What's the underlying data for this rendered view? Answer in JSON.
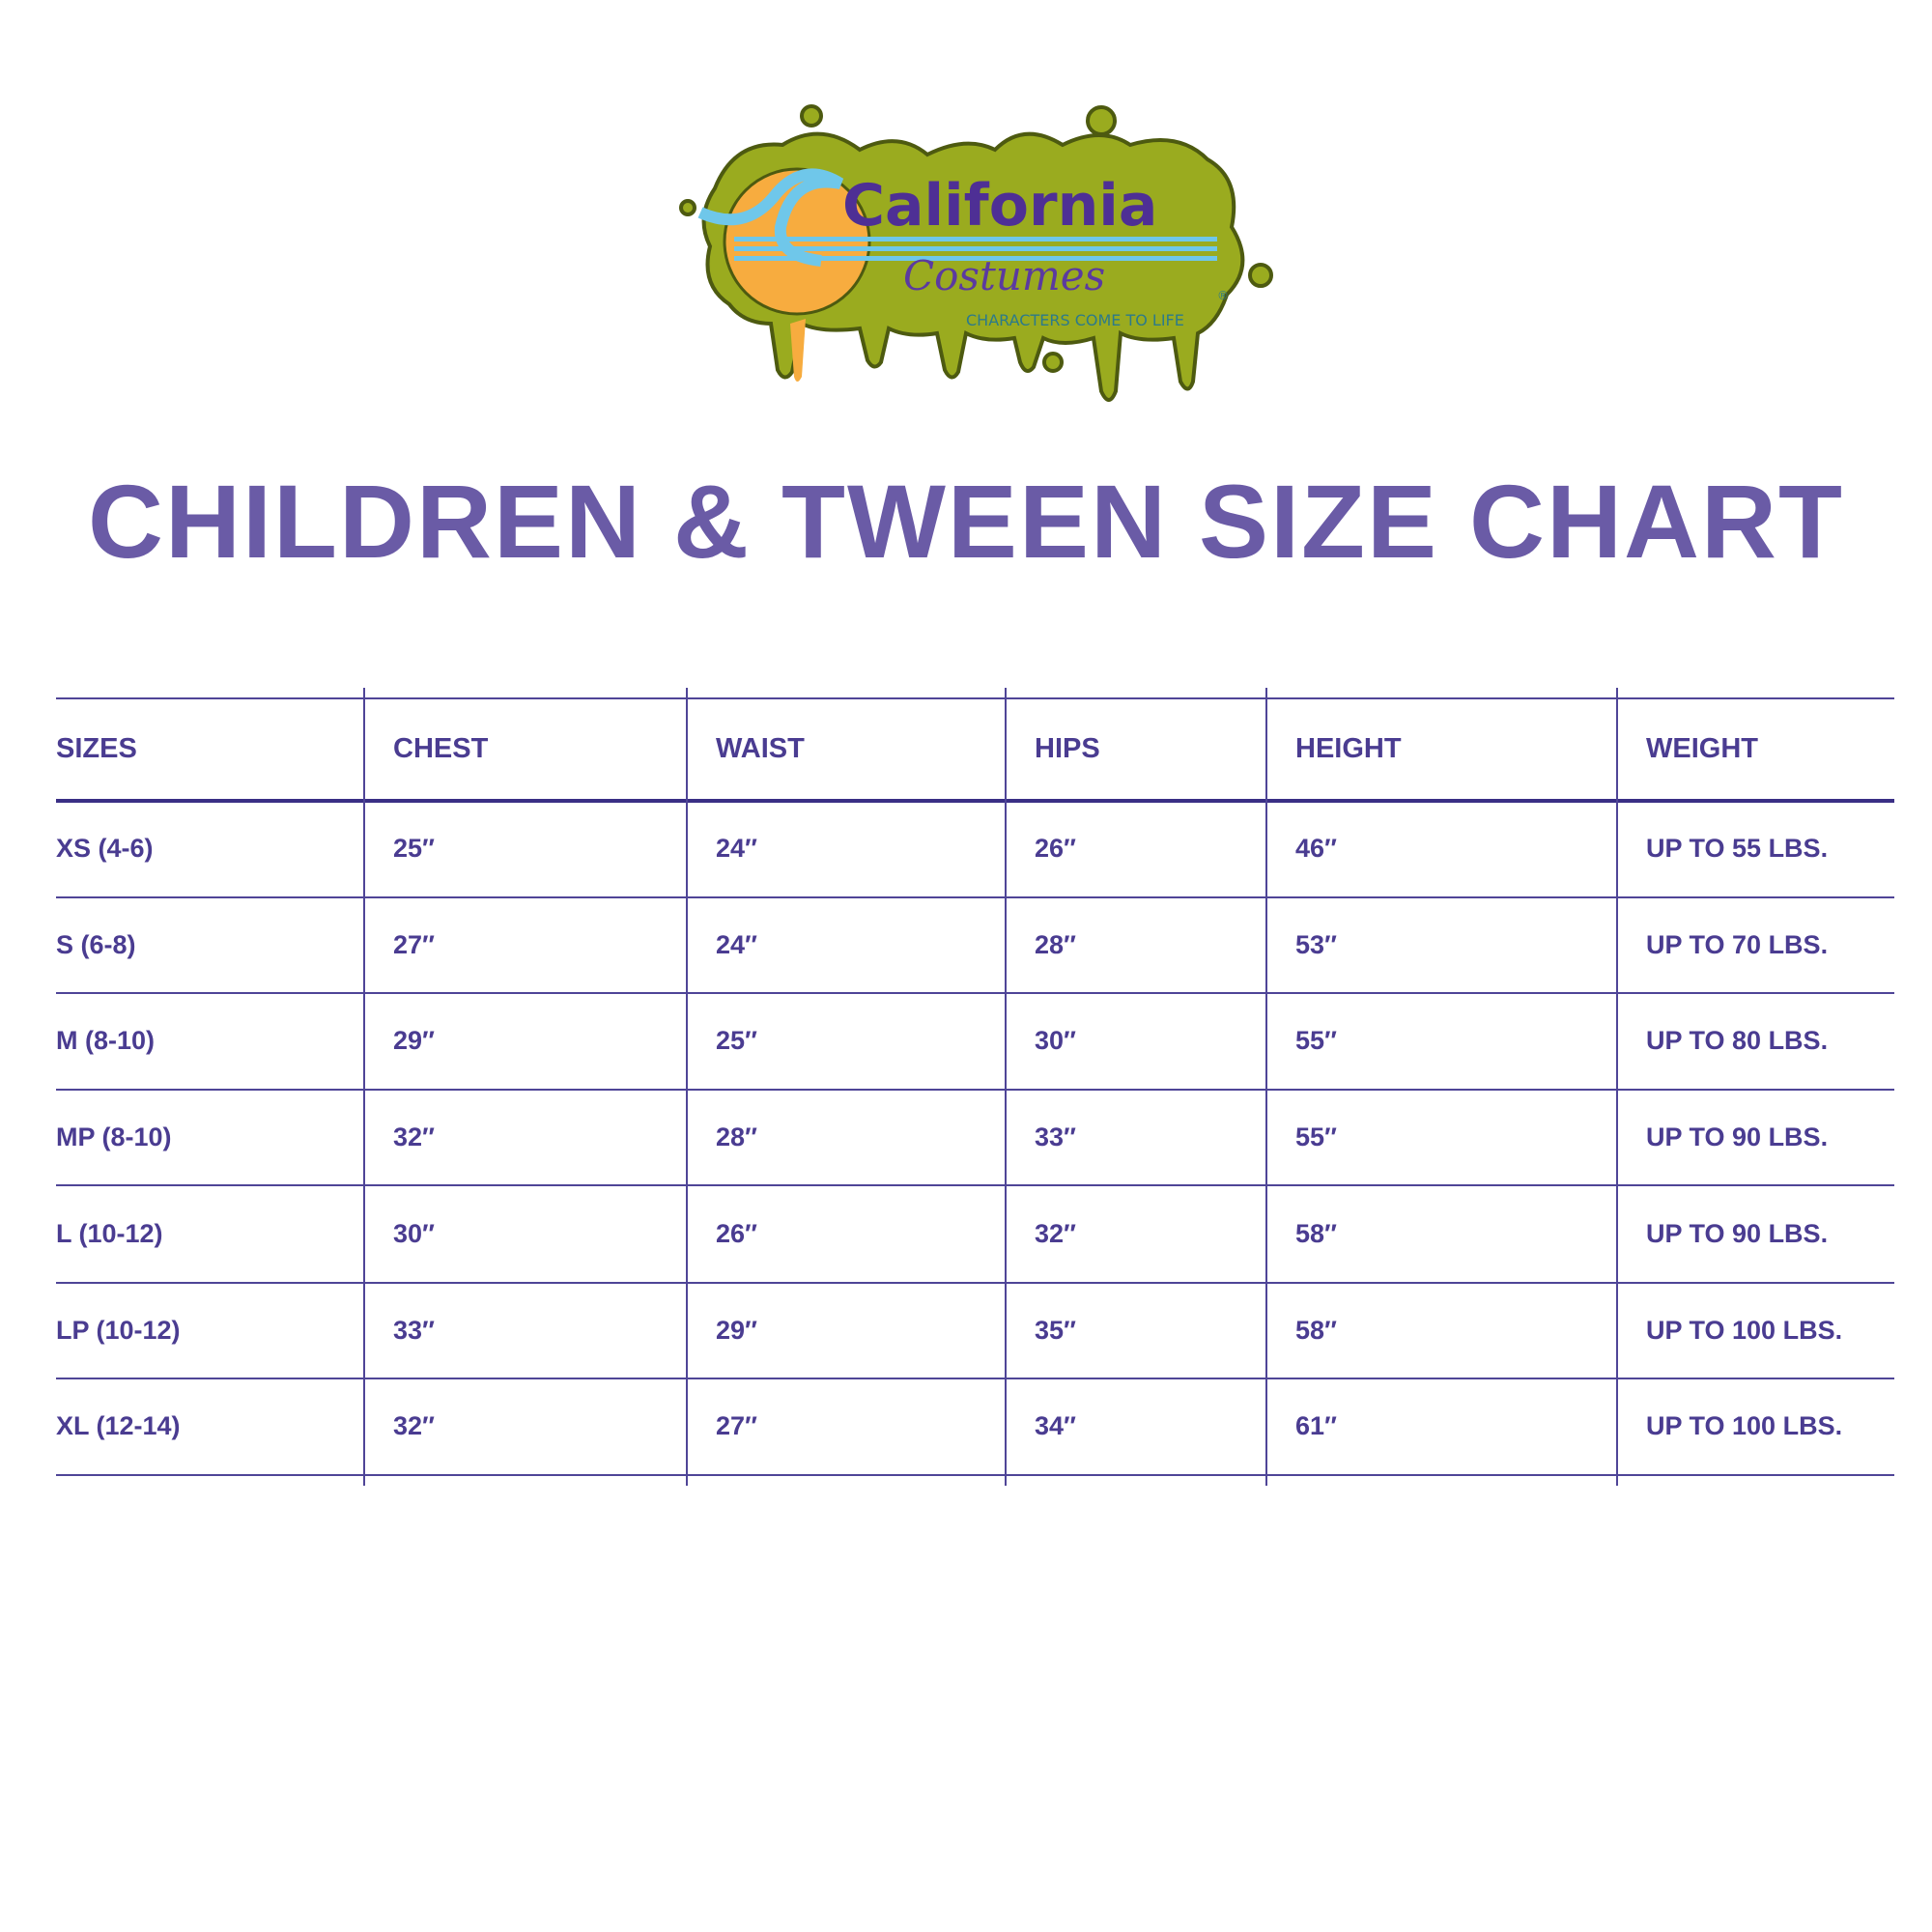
{
  "logo": {
    "brand": "California",
    "sub": "Costumes",
    "tagline": "CHARACTERS COME TO LIFE",
    "mark": "®"
  },
  "title": "CHILDREN & TWEEN SIZE CHART",
  "colors": {
    "title": "#6a5ba6",
    "table_text": "#4a3c91",
    "lines": "#4f4597",
    "slime": "#9aab1f",
    "sun": "#f7ac3f",
    "wave": "#6fc7ea"
  },
  "table": {
    "headers": [
      "SIZES",
      "CHEST",
      "WAIST",
      "HIPS",
      "HEIGHT",
      "WEIGHT"
    ],
    "rows": [
      [
        "XS (4-6)",
        "25″",
        "24″",
        "26″",
        "46″",
        "UP TO 55 LBS."
      ],
      [
        "S (6-8)",
        "27″",
        "24″",
        "28″",
        "53″",
        "UP TO 70 LBS."
      ],
      [
        "M (8-10)",
        "29″",
        "25″",
        "30″",
        "55″",
        "UP TO 80 LBS."
      ],
      [
        "MP (8-10)",
        "32″",
        "28″",
        "33″",
        "55″",
        "UP TO 90 LBS."
      ],
      [
        "L (10-12)",
        "30″",
        "26″",
        "32″",
        "58″",
        "UP TO 90 LBS."
      ],
      [
        "LP (10-12)",
        "33″",
        "29″",
        "35″",
        "58″",
        "UP TO 100 LBS."
      ],
      [
        "XL (12-14)",
        "32″",
        "27″",
        "34″",
        "61″",
        "UP TO 100 LBS."
      ]
    ]
  }
}
